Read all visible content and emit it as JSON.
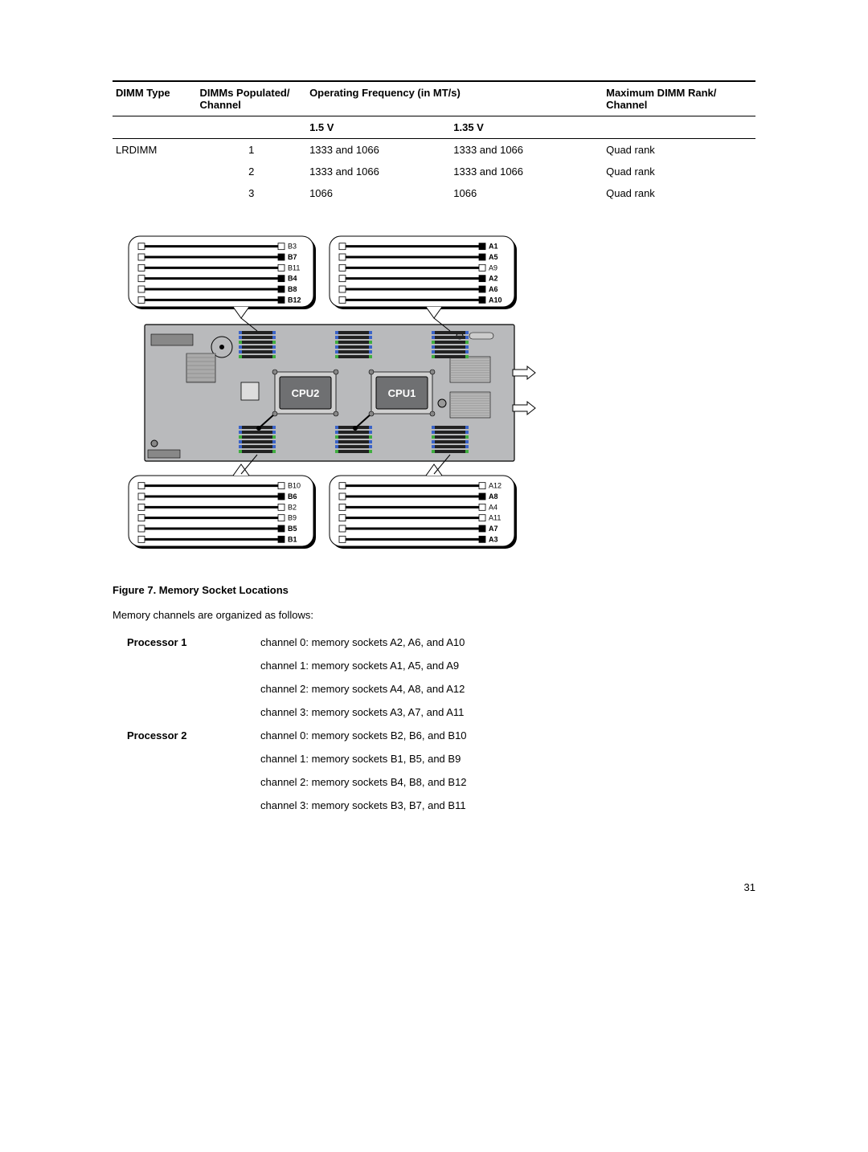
{
  "table": {
    "headers": {
      "dimm_type": "DIMM Type",
      "populated": "DIMMs Populated/ Channel",
      "freq": "Operating Frequency (in MT/s)",
      "rank": "Maximum DIMM Rank/ Channel",
      "v15": "1.5 V",
      "v135": "1.35 V"
    },
    "rows": [
      {
        "type": "LRDIMM",
        "pop": "1",
        "v15": "1333 and 1066",
        "v135": "1333 and 1066",
        "rank": "Quad rank"
      },
      {
        "type": "",
        "pop": "2",
        "v15": "1333 and 1066",
        "v135": "1333 and 1066",
        "rank": "Quad rank"
      },
      {
        "type": "",
        "pop": "3",
        "v15": "1066",
        "v135": "1066",
        "rank": "Quad rank"
      }
    ]
  },
  "figure": {
    "caption": "Figure 7. Memory Socket Locations",
    "cpu1": "CPU1",
    "cpu2": "CPU2",
    "balloons": {
      "top_left": [
        {
          "t": "B3",
          "b": 0
        },
        {
          "t": "B7",
          "b": 1
        },
        {
          "t": "B11",
          "b": 0
        },
        {
          "t": "B4",
          "b": 1
        },
        {
          "t": "B8",
          "b": 1
        },
        {
          "t": "B12",
          "b": 1
        }
      ],
      "top_right": [
        {
          "t": "A1",
          "b": 1
        },
        {
          "t": "A5",
          "b": 1
        },
        {
          "t": "A9",
          "b": 0
        },
        {
          "t": "A2",
          "b": 1
        },
        {
          "t": "A6",
          "b": 1
        },
        {
          "t": "A10",
          "b": 1
        }
      ],
      "bot_left": [
        {
          "t": "B10",
          "b": 0
        },
        {
          "t": "B6",
          "b": 1
        },
        {
          "t": "B2",
          "b": 0
        },
        {
          "t": "B9",
          "b": 0
        },
        {
          "t": "B5",
          "b": 1
        },
        {
          "t": "B1",
          "b": 1
        }
      ],
      "bot_right": [
        {
          "t": "A12",
          "b": 0
        },
        {
          "t": "A8",
          "b": 1
        },
        {
          "t": "A4",
          "b": 0
        },
        {
          "t": "A11",
          "b": 0
        },
        {
          "t": "A7",
          "b": 1
        },
        {
          "t": "A3",
          "b": 1
        }
      ]
    },
    "colors": {
      "board": "#b9babc",
      "balloon_fill": "#ffffff",
      "slot_line": "#000000",
      "tab_white": "#ffffff",
      "tab_black": "#000000",
      "cpu_fill": "#6f7072",
      "dimm_blue": "#3a63c8",
      "dimm_green": "#3fae3f"
    }
  },
  "intro": "Memory channels are organized as follows:",
  "channels": {
    "proc1_label": "Processor 1",
    "proc2_label": "Processor 2",
    "proc1": [
      "channel 0: memory sockets A2, A6, and A10",
      "channel 1: memory sockets A1, A5, and A9",
      "channel 2: memory sockets A4, A8, and A12",
      "channel 3: memory sockets A3, A7, and A11"
    ],
    "proc2": [
      "channel 0: memory sockets B2, B6, and B10",
      "channel 1: memory sockets B1, B5, and B9",
      "channel 2: memory sockets B4, B8, and B12",
      "channel 3: memory sockets B3, B7, and B11"
    ]
  },
  "page_number": "31"
}
